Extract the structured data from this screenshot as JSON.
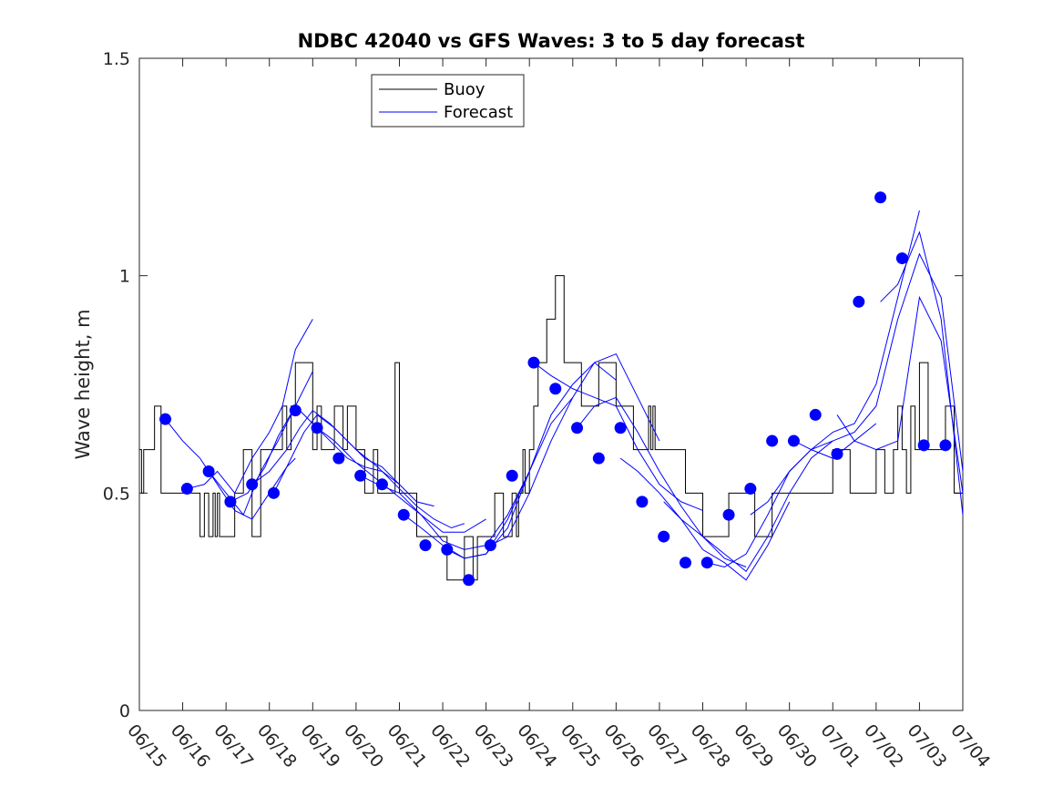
{
  "chart_data": {
    "type": "line",
    "title": "NDBC 42040 vs GFS Waves: 3 to 5 day forecast",
    "xlabel": "",
    "ylabel": "Wave height, m",
    "x_ticks": [
      "06/15",
      "06/16",
      "06/17",
      "06/18",
      "06/19",
      "06/20",
      "06/21",
      "06/22",
      "06/23",
      "06/24",
      "06/25",
      "06/26",
      "06/27",
      "06/28",
      "06/29",
      "06/30",
      "07/01",
      "07/02",
      "07/03",
      "07/04"
    ],
    "y_ticks": [
      "0",
      "0.5",
      "1",
      "1.5"
    ],
    "xlim": [
      0,
      19
    ],
    "ylim": [
      0,
      1.5
    ],
    "grid": false,
    "legend_position": "top-left",
    "colors": {
      "buoy": "#000000",
      "forecast": "#0000ff"
    },
    "buoy": {
      "name": "Buoy",
      "x": [
        0,
        0.05,
        0.1,
        0.3,
        0.35,
        0.5,
        0.7,
        1.0,
        1.3,
        1.4,
        1.5,
        1.6,
        1.7,
        1.75,
        1.8,
        1.85,
        2.0,
        2.1,
        2.2,
        2.3,
        2.4,
        2.6,
        2.8,
        3.0,
        3.2,
        3.3,
        3.4,
        3.5,
        3.6,
        3.8,
        4.0,
        4.1,
        4.2,
        4.3,
        4.5,
        4.7,
        4.8,
        5.0,
        5.2,
        5.4,
        5.5,
        5.6,
        5.9,
        6.0,
        6.2,
        6.4,
        6.6,
        6.8,
        6.9,
        7.0,
        7.1,
        7.3,
        7.5,
        7.7,
        7.8,
        8.0,
        8.2,
        8.4,
        8.6,
        8.7,
        8.75,
        8.8,
        8.85,
        8.9,
        9.0,
        9.1,
        9.2,
        9.4,
        9.6,
        9.8,
        10.0,
        10.2,
        10.4,
        10.6,
        10.8,
        11.0,
        11.2,
        11.4,
        11.6,
        11.7,
        11.75,
        11.8,
        11.85,
        11.9,
        12.0,
        12.2,
        12.4,
        12.6,
        12.8,
        13.0,
        13.2,
        13.4,
        13.6,
        13.8,
        14.0,
        14.2,
        14.4,
        14.6,
        14.8,
        15.0,
        15.2,
        15.4,
        15.6,
        15.8,
        16.0,
        16.2,
        16.4,
        16.6,
        16.8,
        17.0,
        17.2,
        17.4,
        17.5,
        17.6,
        17.7,
        17.8,
        17.9,
        18.0,
        18.2,
        18.4,
        18.6,
        18.8,
        19.0
      ],
      "y": [
        0.6,
        0.5,
        0.6,
        0.6,
        0.7,
        0.5,
        0.5,
        0.5,
        0.5,
        0.4,
        0.5,
        0.4,
        0.5,
        0.4,
        0.5,
        0.4,
        0.4,
        0.4,
        0.5,
        0.5,
        0.6,
        0.4,
        0.6,
        0.6,
        0.6,
        0.7,
        0.6,
        0.7,
        0.8,
        0.8,
        0.6,
        0.7,
        0.6,
        0.6,
        0.7,
        0.6,
        0.7,
        0.6,
        0.5,
        0.6,
        0.5,
        0.5,
        0.8,
        0.5,
        0.5,
        0.4,
        0.4,
        0.4,
        0.4,
        0.4,
        0.3,
        0.3,
        0.4,
        0.3,
        0.4,
        0.4,
        0.5,
        0.4,
        0.5,
        0.4,
        0.5,
        0.5,
        0.6,
        0.5,
        0.6,
        0.7,
        0.8,
        0.9,
        1.0,
        0.8,
        0.8,
        0.7,
        0.7,
        0.8,
        0.8,
        0.7,
        0.7,
        0.6,
        0.6,
        0.6,
        0.7,
        0.6,
        0.7,
        0.6,
        0.6,
        0.6,
        0.6,
        0.5,
        0.5,
        0.4,
        0.4,
        0.4,
        0.5,
        0.5,
        0.5,
        0.4,
        0.4,
        0.5,
        0.5,
        0.5,
        0.5,
        0.5,
        0.5,
        0.5,
        0.6,
        0.6,
        0.5,
        0.5,
        0.5,
        0.6,
        0.5,
        0.6,
        0.7,
        0.6,
        0.5,
        0.7,
        0.6,
        0.8,
        0.6,
        0.6,
        0.7,
        0.5,
        0.5
      ]
    },
    "forecast_runs": [
      {
        "name": "Forecast",
        "x": [
          0.6,
          1.0,
          1.4,
          1.8,
          2.2,
          2.6,
          3.0,
          3.4,
          3.6
        ],
        "y": [
          0.67,
          0.62,
          0.58,
          0.52,
          0.46,
          0.44,
          0.5,
          0.56,
          0.58
        ]
      },
      {
        "x": [
          1.1,
          1.5,
          1.8,
          2.2,
          2.6,
          3.0,
          3.3,
          3.6,
          4.0
        ],
        "y": [
          0.51,
          0.52,
          0.55,
          0.5,
          0.58,
          0.64,
          0.7,
          0.83,
          0.9
        ]
      },
      {
        "x": [
          1.6,
          2.0,
          2.4,
          2.8,
          3.2,
          3.6,
          4.0
        ],
        "y": [
          0.55,
          0.5,
          0.45,
          0.55,
          0.62,
          0.7,
          0.78
        ]
      },
      {
        "x": [
          2.1,
          2.5,
          2.9,
          3.2,
          3.6,
          4.0,
          4.4,
          4.8,
          5.2,
          5.6,
          6.0
        ],
        "y": [
          0.48,
          0.5,
          0.56,
          0.63,
          0.7,
          0.66,
          0.62,
          0.58,
          0.56,
          0.55,
          0.52
        ]
      },
      {
        "x": [
          2.6,
          3.0,
          3.4,
          3.7,
          4.0,
          4.4,
          4.8,
          5.2,
          5.6,
          6.0,
          6.4,
          6.8
        ],
        "y": [
          0.52,
          0.55,
          0.6,
          0.65,
          0.69,
          0.66,
          0.62,
          0.58,
          0.56,
          0.52,
          0.48,
          0.47
        ]
      },
      {
        "x": [
          3.1,
          3.5,
          3.8,
          4.1,
          4.5,
          5.0,
          5.5,
          6.0,
          6.4,
          6.8,
          7.2,
          7.5
        ],
        "y": [
          0.5,
          0.58,
          0.64,
          0.68,
          0.65,
          0.6,
          0.56,
          0.51,
          0.47,
          0.44,
          0.42,
          0.43
        ]
      },
      {
        "x": [
          4.1,
          4.5,
          5.0,
          5.5,
          6.0,
          6.5,
          7.0,
          7.5,
          8.0
        ],
        "y": [
          0.65,
          0.62,
          0.57,
          0.53,
          0.49,
          0.45,
          0.41,
          0.41,
          0.44
        ]
      },
      {
        "x": [
          5.1,
          5.5,
          6.0,
          6.5,
          7.0,
          7.5,
          8.0,
          8.5,
          9.0
        ],
        "y": [
          0.54,
          0.52,
          0.5,
          0.45,
          0.39,
          0.37,
          0.38,
          0.45,
          0.55
        ]
      },
      {
        "x": [
          6.1,
          6.5,
          7.0,
          7.5,
          8.0,
          8.5,
          9.0,
          9.5,
          10.0
        ],
        "y": [
          0.45,
          0.42,
          0.38,
          0.35,
          0.36,
          0.44,
          0.55,
          0.66,
          0.72
        ]
      },
      {
        "x": [
          7.1,
          7.5,
          8.0,
          8.5,
          9.0,
          9.5,
          10.0,
          10.5,
          11.0
        ],
        "y": [
          0.37,
          0.35,
          0.36,
          0.42,
          0.55,
          0.68,
          0.75,
          0.8,
          0.76
        ]
      },
      {
        "x": [
          8.1,
          8.5,
          9.0,
          9.5,
          10.0,
          10.5,
          11.0,
          11.5,
          12.0
        ],
        "y": [
          0.38,
          0.4,
          0.5,
          0.62,
          0.72,
          0.8,
          0.82,
          0.72,
          0.62
        ]
      },
      {
        "x": [
          9.1,
          9.5,
          10.0,
          10.5,
          11.0,
          11.5,
          12.0,
          12.5,
          13.0
        ],
        "y": [
          0.8,
          0.77,
          0.74,
          0.72,
          0.7,
          0.6,
          0.52,
          0.48,
          0.46
        ]
      },
      {
        "x": [
          10.1,
          10.5,
          11.0,
          11.5,
          12.0,
          12.5,
          13.0,
          13.5,
          14.0
        ],
        "y": [
          0.65,
          0.7,
          0.72,
          0.64,
          0.55,
          0.47,
          0.4,
          0.35,
          0.33
        ]
      },
      {
        "x": [
          11.1,
          11.5,
          12.0,
          12.5,
          13.0,
          13.5,
          14.0,
          14.5,
          15.0
        ],
        "y": [
          0.58,
          0.55,
          0.5,
          0.44,
          0.37,
          0.34,
          0.3,
          0.38,
          0.48
        ]
      },
      {
        "x": [
          12.1,
          12.5,
          13.0,
          13.5,
          14.0,
          14.5,
          15.0,
          15.5,
          16.0
        ],
        "y": [
          0.48,
          0.44,
          0.4,
          0.36,
          0.32,
          0.4,
          0.5,
          0.58,
          0.62
        ]
      },
      {
        "x": [
          13.1,
          13.5,
          14.0,
          14.5,
          15.0,
          15.5,
          16.0,
          16.5,
          17.0
        ],
        "y": [
          0.34,
          0.33,
          0.36,
          0.45,
          0.55,
          0.6,
          0.58,
          0.62,
          0.66
        ]
      },
      {
        "x": [
          14.1,
          14.5,
          15.0,
          15.5,
          16.0,
          16.5,
          17.0,
          17.5,
          18.0
        ],
        "y": [
          0.45,
          0.48,
          0.55,
          0.6,
          0.64,
          0.66,
          0.75,
          0.95,
          1.15
        ]
      },
      {
        "x": [
          15.1,
          15.5,
          16.0,
          16.5,
          17.0,
          17.5,
          18.0,
          18.5,
          19.0
        ],
        "y": [
          0.62,
          0.6,
          0.62,
          0.64,
          0.7,
          0.9,
          1.05,
          0.95,
          0.55
        ]
      },
      {
        "x": [
          16.1,
          16.5,
          17.0,
          17.5,
          18.0,
          18.5,
          19.0
        ],
        "y": [
          0.68,
          0.62,
          0.6,
          0.62,
          0.95,
          0.85,
          0.5
        ]
      },
      {
        "x": [
          17.1,
          17.5,
          18.0,
          18.5,
          19.0
        ],
        "y": [
          0.94,
          0.98,
          1.1,
          0.9,
          0.45
        ]
      }
    ],
    "forecast_points": {
      "x": [
        0.6,
        1.1,
        1.6,
        2.1,
        2.6,
        3.1,
        3.6,
        4.1,
        4.6,
        5.1,
        5.6,
        6.1,
        6.6,
        7.1,
        7.6,
        8.1,
        8.6,
        9.1,
        9.6,
        10.1,
        10.6,
        11.1,
        11.6,
        12.1,
        12.6,
        13.1,
        13.6,
        14.1,
        14.6,
        15.1,
        15.6,
        16.1,
        16.6,
        17.1,
        17.6,
        18.1,
        18.6
      ],
      "y": [
        0.67,
        0.51,
        0.55,
        0.48,
        0.52,
        0.5,
        0.69,
        0.65,
        0.58,
        0.54,
        0.52,
        0.45,
        0.38,
        0.37,
        0.3,
        0.38,
        0.54,
        0.8,
        0.74,
        0.65,
        0.58,
        0.65,
        0.48,
        0.4,
        0.34,
        0.34,
        0.45,
        0.51,
        0.62,
        0.62,
        0.68,
        0.59,
        0.94,
        1.18,
        1.04,
        0.61,
        0.61
      ]
    },
    "legend": [
      "Buoy",
      "Forecast"
    ]
  }
}
